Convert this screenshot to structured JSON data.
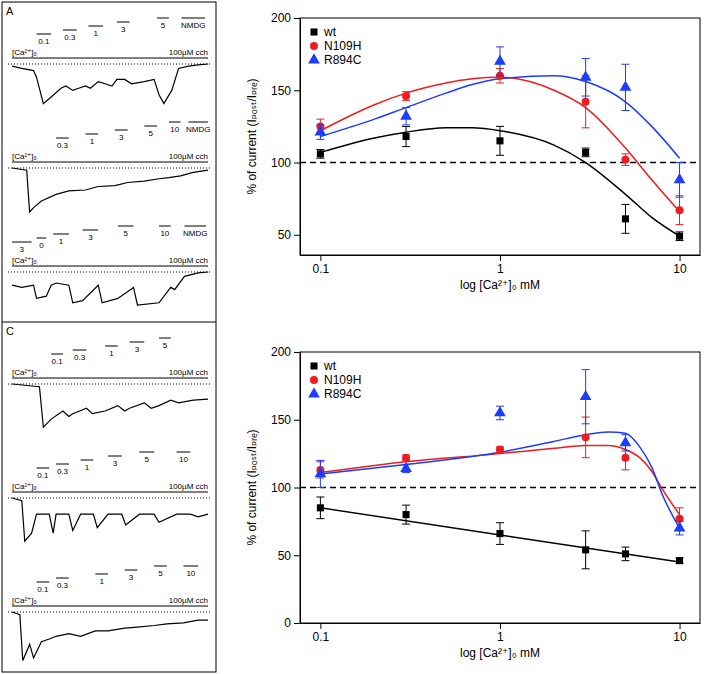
{
  "chart_data": [
    {
      "type": "scatter",
      "x": [
        0.1,
        0.3,
        1,
        3,
        5,
        10
      ],
      "xlim": [
        0.077,
        13
      ],
      "ylim": [
        36,
        200
      ],
      "xticks": [
        0.1,
        1,
        10
      ],
      "yticks": [
        50,
        100,
        150,
        200
      ],
      "log": "x",
      "x_label": "log [Ca²⁺]₀ mM",
      "y_label": "% of  current (Iₚₒₛₜ/Iₚᵣₑ)",
      "legend": "top-left",
      "reference_line": {
        "value": 100,
        "line_style": "dashed"
      },
      "series": [
        {
          "name": "wt",
          "color": "#000000",
          "marker": "square",
          "values": [
            106,
            118,
            115,
            107,
            61,
            49
          ],
          "errors": [
            3,
            7,
            10,
            3,
            10,
            3
          ],
          "fit_x": [
            0.1,
            0.2,
            0.3,
            0.5,
            0.7,
            1,
            2,
            3,
            5,
            7,
            10
          ],
          "fit_values": [
            107,
            117,
            121,
            124,
            124,
            122,
            112,
            100,
            78,
            62,
            49
          ]
        },
        {
          "name": "N109H",
          "color": "#ee1c1c",
          "marker": "circle",
          "values": [
            125,
            146,
            160,
            142,
            102,
            67
          ],
          "errors": [
            5,
            3,
            5,
            18,
            4,
            10
          ],
          "fit_x": [
            0.1,
            0.2,
            0.3,
            0.5,
            0.7,
            1,
            2,
            3,
            5,
            7,
            10
          ],
          "fit_values": [
            122,
            140,
            148,
            155,
            158,
            159,
            150,
            138,
            110,
            88,
            66
          ]
        },
        {
          "name": "R894C",
          "color": "#1c3cff",
          "marker": "triangle",
          "values": [
            121,
            132,
            170,
            159,
            152,
            88
          ],
          "errors": [
            5,
            6,
            10,
            13,
            16,
            12
          ],
          "fit_x": [
            0.1,
            0.2,
            0.3,
            0.5,
            0.7,
            1,
            2,
            3,
            5,
            7,
            10
          ],
          "fit_values": [
            118,
            130,
            138,
            148,
            154,
            158,
            160,
            156,
            142,
            125,
            103
          ]
        }
      ]
    },
    {
      "type": "scatter",
      "x": [
        0.1,
        0.3,
        1,
        3,
        5,
        10
      ],
      "xlim": [
        0.077,
        13
      ],
      "ylim": [
        0,
        200
      ],
      "xticks": [
        0.1,
        1,
        10
      ],
      "yticks": [
        0,
        50,
        100,
        150,
        200
      ],
      "log": "x",
      "x_label": "log [Ca²⁺]₀ mM",
      "y_label": "% of  current (Iₚₒₛₜ/Iₚᵣₑ)",
      "legend": "top-left",
      "reference_line": {
        "value": 100,
        "line_style": "dashed"
      },
      "series": [
        {
          "name": "wt",
          "color": "#000000",
          "marker": "square",
          "values": [
            85,
            80,
            66,
            54,
            51,
            46
          ],
          "errors": [
            8,
            7,
            8,
            14,
            5,
            2
          ],
          "fit_x": [
            0.1,
            10
          ],
          "fit_values": [
            85,
            45
          ]
        },
        {
          "name": "N109H",
          "color": "#ee1c1c",
          "marker": "circle",
          "values": [
            113,
            122,
            128,
            137,
            122,
            77
          ],
          "errors": [
            6,
            2,
            2,
            15,
            9,
            8
          ],
          "fit_x": [
            0.1,
            0.3,
            1,
            2,
            3,
            4,
            5,
            6,
            7,
            8,
            10
          ],
          "fit_values": [
            111,
            119,
            125,
            129,
            131,
            131,
            128,
            122,
            112,
            99,
            80
          ]
        },
        {
          "name": "R894C",
          "color": "#1c3cff",
          "marker": "triangle",
          "values": [
            110,
            114,
            155,
            167,
            133,
            70
          ],
          "errors": [
            10,
            3,
            5,
            20,
            6,
            5
          ],
          "fit_x": [
            0.1,
            0.3,
            1,
            2,
            3,
            4,
            5,
            6,
            7,
            8,
            10
          ],
          "fit_values": [
            110,
            117,
            126,
            134,
            139,
            141,
            140,
            130,
            115,
            95,
            70
          ]
        }
      ]
    }
  ],
  "trace_panels": [
    {
      "label": "A",
      "tlim": [
        0,
        200
      ],
      "current_lim": [
        -1,
        0
      ],
      "traces": [
        {
          "ca_label": "[Ca²⁺]ₒ",
          "drug_label": "100µM cch",
          "applications": [
            {
              "label": "0.1",
              "start": 25,
              "end": 40
            },
            {
              "label": "0.3",
              "start": 52,
              "end": 66
            },
            {
              "label": "1",
              "start": 78,
              "end": 93
            },
            {
              "label": "3",
              "start": 107,
              "end": 120
            },
            {
              "label": "5",
              "start": 148,
              "end": 160
            },
            {
              "label": "NMDG",
              "start": 173,
              "end": 197
            }
          ],
          "t": [
            0,
            10,
            22,
            25,
            32,
            40,
            50,
            55,
            62,
            68,
            75,
            80,
            88,
            95,
            102,
            107,
            115,
            122,
            135,
            145,
            150,
            155,
            163,
            170,
            180,
            190,
            200
          ],
          "current": [
            -0.05,
            -0.1,
            -0.15,
            -0.3,
            -0.9,
            -0.75,
            -0.55,
            -0.5,
            -0.6,
            -0.55,
            -0.5,
            -0.55,
            -0.4,
            -0.45,
            -0.5,
            -0.35,
            -0.35,
            -0.45,
            -0.4,
            -0.35,
            -0.7,
            -0.9,
            -0.6,
            -0.1,
            -0.05,
            -0.02,
            0
          ]
        },
        {
          "ca_label": "[Ca²⁺]ₒ",
          "drug_label": "100µM cch",
          "applications": [
            {
              "label": "0.3",
              "start": 45,
              "end": 58
            },
            {
              "label": "1",
              "start": 75,
              "end": 88
            },
            {
              "label": "3",
              "start": 105,
              "end": 118
            },
            {
              "label": "5",
              "start": 135,
              "end": 148
            },
            {
              "label": "10",
              "start": 160,
              "end": 172
            },
            {
              "label": "NMDG",
              "start": 180,
              "end": 200
            }
          ],
          "t": [
            0,
            15,
            18,
            22,
            30,
            45,
            58,
            75,
            88,
            105,
            118,
            135,
            148,
            160,
            172,
            185,
            200
          ],
          "current": [
            0,
            -0.05,
            -1,
            -0.9,
            -0.75,
            -0.6,
            -0.52,
            -0.5,
            -0.42,
            -0.4,
            -0.33,
            -0.3,
            -0.25,
            -0.22,
            -0.18,
            -0.1,
            -0.05
          ]
        },
        {
          "ca_label": "[Ca²⁺]ₒ",
          "drug_label": "100µM cch",
          "applications": [
            {
              "label": "3",
              "start": 0,
              "end": 20
            },
            {
              "label": "0",
              "start": 25,
              "end": 35
            },
            {
              "label": "1",
              "start": 42,
              "end": 58
            },
            {
              "label": "3",
              "start": 72,
              "end": 88
            },
            {
              "label": "5",
              "start": 108,
              "end": 124
            },
            {
              "label": "10",
              "start": 150,
              "end": 162
            },
            {
              "label": "NMDG",
              "start": 176,
              "end": 198
            }
          ],
          "t": [
            0,
            10,
            22,
            25,
            35,
            40,
            45,
            58,
            62,
            72,
            88,
            92,
            108,
            124,
            128,
            150,
            162,
            166,
            176,
            190,
            200
          ],
          "current": [
            -0.3,
            -0.35,
            -0.3,
            -0.6,
            -0.55,
            -0.3,
            -0.25,
            -0.3,
            -0.7,
            -0.65,
            -0.3,
            -0.7,
            -0.6,
            -0.35,
            -0.75,
            -0.7,
            -0.35,
            -0.4,
            -0.1,
            -0.02,
            0
          ]
        }
      ]
    },
    {
      "label": "C",
      "tlim": [
        0,
        200
      ],
      "current_lim": [
        -1,
        0
      ],
      "traces": [
        {
          "ca_label": "[Ca²⁺]ₒ",
          "drug_label": "100µM cch",
          "applications": [
            {
              "label": "0.1",
              "start": 40,
              "end": 52
            },
            {
              "label": "0.3",
              "start": 62,
              "end": 76
            },
            {
              "label": "1",
              "start": 95,
              "end": 108
            },
            {
              "label": "3",
              "start": 120,
              "end": 135
            },
            {
              "label": "5",
              "start": 150,
              "end": 162
            }
          ],
          "t": [
            0,
            28,
            32,
            40,
            52,
            58,
            62,
            76,
            82,
            95,
            108,
            115,
            120,
            135,
            142,
            150,
            162,
            170,
            185,
            200
          ],
          "current": [
            0,
            -0.05,
            -0.8,
            -0.65,
            -0.5,
            -0.6,
            -0.55,
            -0.45,
            -0.55,
            -0.5,
            -0.4,
            -0.5,
            -0.45,
            -0.35,
            -0.45,
            -0.4,
            -0.3,
            -0.35,
            -0.3,
            -0.28
          ]
        },
        {
          "ca_label": "[Ca²⁺]ₒ",
          "drug_label": "100µM cch",
          "applications": [
            {
              "label": "0.1",
              "start": 25,
              "end": 38
            },
            {
              "label": "0.3",
              "start": 45,
              "end": 58
            },
            {
              "label": "1",
              "start": 70,
              "end": 83
            },
            {
              "label": "3",
              "start": 98,
              "end": 112
            },
            {
              "label": "5",
              "start": 130,
              "end": 145
            },
            {
              "label": "10",
              "start": 168,
              "end": 182
            }
          ],
          "t": [
            0,
            10,
            13,
            20,
            25,
            38,
            42,
            45,
            58,
            62,
            70,
            83,
            87,
            98,
            112,
            116,
            130,
            145,
            150,
            168,
            182,
            190,
            200
          ],
          "current": [
            0,
            -0.05,
            -0.8,
            -0.65,
            -0.3,
            -0.3,
            -0.65,
            -0.3,
            -0.3,
            -0.6,
            -0.3,
            -0.3,
            -0.55,
            -0.3,
            -0.3,
            -0.5,
            -0.3,
            -0.3,
            -0.45,
            -0.3,
            -0.3,
            -0.35,
            -0.3
          ]
        },
        {
          "ca_label": "[Ca²⁺]ₒ",
          "drug_label": "100µM cch",
          "applications": [
            {
              "label": "0.1",
              "start": 25,
              "end": 38
            },
            {
              "label": "0.3",
              "start": 45,
              "end": 58
            },
            {
              "label": "1",
              "start": 85,
              "end": 98
            },
            {
              "label": "3",
              "start": 115,
              "end": 128
            },
            {
              "label": "5",
              "start": 145,
              "end": 158
            },
            {
              "label": "10",
              "start": 175,
              "end": 190
            }
          ],
          "t": [
            0,
            8,
            11,
            18,
            22,
            30,
            38,
            45,
            58,
            70,
            85,
            98,
            115,
            128,
            145,
            158,
            175,
            190,
            200
          ],
          "current": [
            0,
            -0.05,
            -0.9,
            -0.6,
            -0.85,
            -0.55,
            -0.5,
            -0.45,
            -0.4,
            -0.45,
            -0.35,
            -0.35,
            -0.3,
            -0.28,
            -0.25,
            -0.22,
            -0.2,
            -0.15,
            -0.15
          ]
        }
      ]
    }
  ]
}
